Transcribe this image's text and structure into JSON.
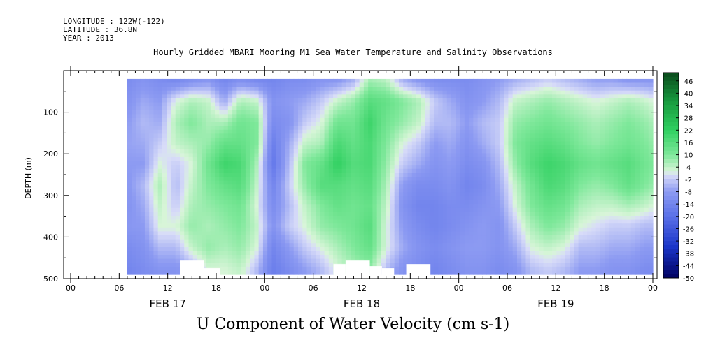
{
  "header": {
    "longitude": "LONGITUDE : 122W(-122)",
    "latitude": "LATITUDE : 36.8N",
    "year": "YEAR : 2013"
  },
  "chart_data": {
    "type": "heatmap",
    "title": "Hourly Gridded MBARI Mooring M1 Sea Water Temperature and Salinity Observations",
    "variable_title": "U Component of Water Velocity (cm s-1)",
    "ylabel": "DEPTH (m)",
    "ylim": [
      500,
      0
    ],
    "y_ticks": [
      100,
      200,
      300,
      400,
      500
    ],
    "x_range_hours": [
      0,
      72
    ],
    "x_ticks": [
      {
        "h": 0,
        "label": "00"
      },
      {
        "h": 6,
        "label": "06"
      },
      {
        "h": 12,
        "label": "12"
      },
      {
        "h": 18,
        "label": "18"
      },
      {
        "h": 24,
        "label": "00"
      },
      {
        "h": 30,
        "label": "06"
      },
      {
        "h": 36,
        "label": "12"
      },
      {
        "h": 42,
        "label": "18"
      },
      {
        "h": 48,
        "label": "00"
      },
      {
        "h": 54,
        "label": "06"
      },
      {
        "h": 60,
        "label": "12"
      },
      {
        "h": 66,
        "label": "18"
      },
      {
        "h": 72,
        "label": "00"
      }
    ],
    "date_labels": [
      {
        "h": 12,
        "label": "FEB 17"
      },
      {
        "h": 36,
        "label": "FEB 18"
      },
      {
        "h": 60,
        "label": "FEB 19"
      }
    ],
    "data_start_hour": 7,
    "data_depth_range": [
      20,
      490
    ],
    "colorbar_labels": [
      "46",
      "40",
      "34",
      "28",
      "22",
      "16",
      "10",
      "4",
      "-2",
      "-8",
      "-14",
      "-20",
      "-26",
      "-32",
      "-38",
      "-44",
      "-50"
    ],
    "color_scale": {
      "min": -50,
      "max": 50,
      "stops": [
        {
          "v": -50,
          "c": "#000060"
        },
        {
          "v": -35,
          "c": "#1a35c8"
        },
        {
          "v": -20,
          "c": "#5a70e8"
        },
        {
          "v": -8,
          "c": "#8c9af2"
        },
        {
          "v": 0,
          "c": "#d8dcf8"
        },
        {
          "v": 2,
          "c": "#d8f5d8"
        },
        {
          "v": 10,
          "c": "#7ee89a"
        },
        {
          "v": 22,
          "c": "#2fd060"
        },
        {
          "v": 36,
          "c": "#179a3e"
        },
        {
          "v": 50,
          "c": "#0a4a1c"
        }
      ]
    },
    "profiles": [
      {
        "h": 7,
        "u": [
          -12,
          -10,
          -8,
          -7,
          -8,
          -9,
          -10,
          -9,
          -12,
          -14
        ]
      },
      {
        "h": 9,
        "u": [
          -10,
          -6,
          -4,
          -6,
          -8,
          -4,
          -6,
          -8,
          -10,
          -12
        ]
      },
      {
        "h": 11,
        "u": [
          -12,
          -8,
          -6,
          -2,
          2,
          6,
          4,
          2,
          -4,
          -10
        ]
      },
      {
        "h": 13,
        "u": [
          -14,
          2,
          6,
          4,
          -2,
          -4,
          -2,
          2,
          -4,
          -10
        ]
      },
      {
        "h": 15,
        "u": [
          -12,
          6,
          10,
          6,
          2,
          4,
          6,
          8,
          4,
          -6
        ]
      },
      {
        "h": 17,
        "u": [
          -10,
          4,
          6,
          8,
          12,
          10,
          8,
          6,
          8,
          2
        ]
      },
      {
        "h": 19,
        "u": [
          -14,
          -6,
          6,
          14,
          20,
          14,
          10,
          8,
          6,
          2
        ]
      },
      {
        "h": 21,
        "u": [
          -12,
          6,
          12,
          14,
          18,
          16,
          12,
          10,
          8,
          4
        ]
      },
      {
        "h": 23,
        "u": [
          -14,
          4,
          10,
          10,
          6,
          4,
          2,
          4,
          2,
          -4
        ]
      },
      {
        "h": 25,
        "u": [
          -14,
          -10,
          -12,
          -16,
          -18,
          -14,
          -12,
          -10,
          -14,
          -16
        ]
      },
      {
        "h": 27,
        "u": [
          -12,
          -8,
          -10,
          -6,
          -4,
          -2,
          -4,
          -2,
          -8,
          -12
        ]
      },
      {
        "h": 29,
        "u": [
          -12,
          -6,
          -2,
          4,
          10,
          8,
          4,
          2,
          -2,
          -8
        ]
      },
      {
        "h": 31,
        "u": [
          -10,
          -2,
          2,
          6,
          14,
          16,
          10,
          8,
          2,
          -4
        ]
      },
      {
        "h": 33,
        "u": [
          -10,
          4,
          12,
          18,
          22,
          16,
          14,
          10,
          6,
          2
        ]
      },
      {
        "h": 35,
        "u": [
          -6,
          8,
          12,
          14,
          16,
          14,
          12,
          12,
          10,
          6
        ]
      },
      {
        "h": 37,
        "u": [
          6,
          16,
          20,
          18,
          18,
          16,
          14,
          16,
          14,
          8
        ]
      },
      {
        "h": 39,
        "u": [
          4,
          14,
          12,
          10,
          8,
          6,
          4,
          2,
          2,
          -4
        ]
      },
      {
        "h": 41,
        "u": [
          -6,
          10,
          8,
          2,
          -2,
          -8,
          -10,
          -8,
          -6,
          -10
        ]
      },
      {
        "h": 43,
        "u": [
          -10,
          6,
          4,
          -2,
          -6,
          -12,
          -14,
          -12,
          -10,
          -12
        ]
      },
      {
        "h": 45,
        "u": [
          -12,
          -2,
          -4,
          -8,
          -10,
          -12,
          -14,
          -14,
          -12,
          -14
        ]
      },
      {
        "h": 47,
        "u": [
          -12,
          -6,
          -4,
          -6,
          -8,
          -10,
          -12,
          -12,
          -10,
          -12
        ]
      },
      {
        "h": 49,
        "u": [
          -12,
          -10,
          -8,
          -10,
          -12,
          -14,
          -12,
          -10,
          -8,
          -10
        ]
      },
      {
        "h": 51,
        "u": [
          -10,
          -8,
          -4,
          -6,
          -10,
          -12,
          -10,
          -8,
          -8,
          -10
        ]
      },
      {
        "h": 53,
        "u": [
          -8,
          -4,
          -2,
          -2,
          -4,
          -6,
          -8,
          -10,
          -10,
          -12
        ]
      },
      {
        "h": 55,
        "u": [
          -6,
          4,
          8,
          10,
          8,
          4,
          2,
          -2,
          -6,
          -10
        ]
      },
      {
        "h": 57,
        "u": [
          -4,
          6,
          10,
          14,
          16,
          12,
          10,
          6,
          2,
          -4
        ]
      },
      {
        "h": 59,
        "u": [
          -2,
          8,
          12,
          16,
          20,
          18,
          14,
          10,
          4,
          -2
        ]
      },
      {
        "h": 61,
        "u": [
          -4,
          6,
          10,
          14,
          18,
          16,
          12,
          8,
          2,
          -4
        ]
      },
      {
        "h": 63,
        "u": [
          -6,
          4,
          8,
          10,
          14,
          10,
          6,
          2,
          -4,
          -8
        ]
      },
      {
        "h": 65,
        "u": [
          -8,
          2,
          6,
          8,
          12,
          8,
          4,
          0,
          -4,
          -8
        ]
      },
      {
        "h": 67,
        "u": [
          -8,
          4,
          8,
          10,
          14,
          10,
          4,
          -2,
          -6,
          -10
        ]
      },
      {
        "h": 69,
        "u": [
          -10,
          6,
          10,
          12,
          16,
          14,
          6,
          -2,
          -6,
          -10
        ]
      },
      {
        "h": 71,
        "u": [
          -10,
          4,
          8,
          10,
          12,
          10,
          4,
          -4,
          -8,
          -12
        ]
      },
      {
        "h": 72,
        "u": [
          -10,
          2,
          6,
          8,
          10,
          8,
          2,
          -4,
          -8,
          -12
        ]
      }
    ],
    "profile_depths": [
      20,
      75,
      125,
      175,
      225,
      275,
      325,
      375,
      425,
      480
    ],
    "missing_bottom": [
      {
        "h0": 13.5,
        "h1": 16.5,
        "top": 455
      },
      {
        "h0": 16.5,
        "h1": 18.5,
        "top": 475
      },
      {
        "h0": 32.5,
        "h1": 34.0,
        "top": 465
      },
      {
        "h0": 34.0,
        "h1": 37.0,
        "top": 455
      },
      {
        "h0": 37.0,
        "h1": 38.5,
        "top": 470
      },
      {
        "h0": 38.5,
        "h1": 40.0,
        "top": 475
      },
      {
        "h0": 41.5,
        "h1": 44.5,
        "top": 465
      }
    ]
  }
}
